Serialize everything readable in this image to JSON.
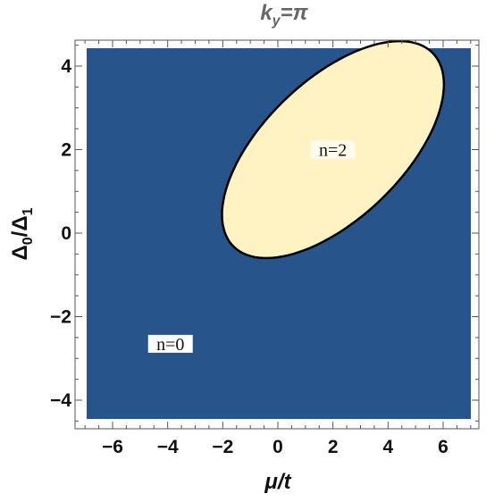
{
  "chart_data": {
    "type": "region",
    "title": "k_y=π",
    "title_parts": {
      "base": "k",
      "sub": "y",
      "rest": "=π"
    },
    "xlabel": "μ/t",
    "ylabel": "Δ0/Δ1",
    "ylabel_parts": {
      "a": "Δ",
      "a_sub": "0",
      "sep": "/",
      "b": "Δ",
      "b_sub": "1"
    },
    "xlim": [
      -7,
      7
    ],
    "ylim": [
      -4.5,
      4.5
    ],
    "x_ticks": [
      -6,
      -4,
      -2,
      0,
      2,
      4,
      6
    ],
    "y_ticks": [
      -4,
      -2,
      0,
      2,
      4
    ],
    "x_tick_labels": [
      "−6",
      "−4",
      "−2",
      "0",
      "2",
      "4",
      "6"
    ],
    "y_tick_labels": [
      "−4",
      "−2",
      "0",
      "2",
      "4"
    ],
    "regions": [
      {
        "name": "n=0",
        "label": "n=0",
        "color": "#27548a",
        "label_at": {
          "x": -3.9,
          "y": -2.65
        }
      },
      {
        "name": "n=2",
        "label": "n=2",
        "color": "#fff3c4",
        "label_at": {
          "x": 2.0,
          "y": 2.0
        },
        "boundary": {
          "shape": "ellipse",
          "center": {
            "x": 2.0,
            "y": 2.0
          },
          "semi_major": 4.4,
          "semi_minor": 1.9,
          "rotation_deg": 26.5
        }
      }
    ],
    "boundary_color": "#000000",
    "grid": false
  }
}
